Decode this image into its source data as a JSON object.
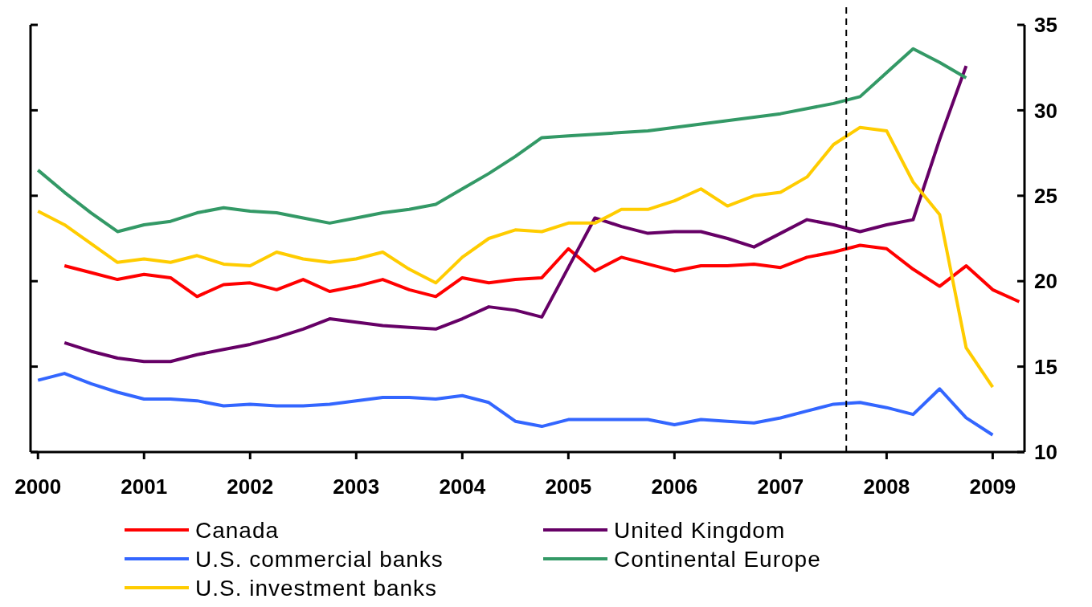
{
  "chart_data": {
    "type": "line",
    "x": [
      2000,
      2000.25,
      2000.5,
      2000.75,
      2001,
      2001.25,
      2001.5,
      2001.75,
      2002,
      2002.25,
      2002.5,
      2002.75,
      2003,
      2003.25,
      2003.5,
      2003.75,
      2004,
      2004.25,
      2004.5,
      2004.75,
      2005,
      2005.25,
      2005.5,
      2005.75,
      2006,
      2006.25,
      2006.5,
      2006.75,
      2007,
      2007.25,
      2007.5,
      2007.75,
      2008,
      2008.25,
      2008.5,
      2008.75,
      2009,
      2009.25
    ],
    "series": [
      {
        "name": "Canada",
        "color": "#ff0000",
        "values": [
          null,
          20.9,
          20.5,
          20.1,
          20.4,
          20.2,
          19.1,
          19.8,
          19.9,
          19.5,
          20.1,
          19.4,
          19.7,
          20.1,
          19.5,
          19.1,
          20.2,
          19.9,
          20.1,
          20.2,
          21.9,
          20.6,
          21.4,
          21.0,
          20.6,
          20.9,
          20.9,
          21.0,
          20.8,
          21.4,
          21.7,
          22.1,
          21.9,
          20.7,
          19.7,
          20.9,
          19.5,
          18.8
        ]
      },
      {
        "name": "United Kingdom",
        "color": "#660066",
        "values": [
          null,
          16.4,
          15.9,
          15.5,
          15.3,
          15.3,
          15.7,
          16.0,
          16.3,
          16.7,
          17.2,
          17.8,
          17.6,
          17.4,
          17.3,
          17.2,
          17.8,
          18.5,
          18.3,
          17.9,
          20.8,
          23.7,
          23.2,
          22.8,
          22.9,
          22.9,
          22.5,
          22.0,
          22.8,
          23.6,
          23.3,
          22.9,
          23.3,
          23.6,
          28.3,
          32.6,
          null,
          null
        ]
      },
      {
        "name": "U.S. commercial banks",
        "color": "#3366ff",
        "values": [
          14.2,
          14.6,
          14.0,
          13.5,
          13.1,
          13.1,
          13.0,
          12.7,
          12.8,
          12.7,
          12.7,
          12.8,
          13.0,
          13.2,
          13.2,
          13.1,
          13.3,
          12.9,
          11.8,
          11.5,
          11.9,
          11.9,
          11.9,
          11.9,
          11.6,
          11.9,
          11.8,
          11.7,
          12.0,
          12.4,
          12.8,
          12.9,
          12.6,
          12.2,
          13.7,
          12.0,
          11.0,
          null
        ]
      },
      {
        "name": "Continental Europe",
        "color": "#339966",
        "values": [
          26.5,
          25.2,
          24.0,
          22.9,
          23.3,
          23.5,
          24.0,
          24.3,
          24.1,
          24.0,
          23.7,
          23.4,
          23.7,
          24.0,
          24.2,
          24.5,
          25.4,
          26.3,
          27.3,
          28.4,
          28.5,
          28.6,
          28.7,
          28.8,
          29.0,
          29.2,
          29.4,
          29.6,
          29.8,
          30.1,
          30.4,
          30.8,
          32.2,
          33.6,
          32.8,
          31.9,
          null,
          null
        ]
      },
      {
        "name": "U.S. investment banks",
        "color": "#ffcc00",
        "values": [
          24.1,
          23.3,
          22.2,
          21.1,
          21.3,
          21.1,
          21.5,
          21.0,
          20.9,
          21.7,
          21.3,
          21.1,
          21.3,
          21.7,
          20.7,
          19.9,
          21.4,
          22.5,
          23.0,
          22.9,
          23.4,
          23.4,
          24.2,
          24.2,
          24.7,
          25.4,
          24.4,
          25.0,
          25.2,
          26.1,
          28.0,
          29.0,
          28.8,
          25.8,
          23.9,
          16.1,
          13.8,
          null
        ]
      }
    ],
    "xlim": [
      1999.93,
      2009.3
    ],
    "xticks": [
      2000,
      2001,
      2002,
      2003,
      2004,
      2005,
      2006,
      2007,
      2008,
      2009
    ],
    "ylim": [
      10,
      35
    ],
    "yticks": [
      10,
      15,
      20,
      25,
      30,
      35
    ],
    "ref_lines": [
      {
        "axis": "x",
        "value": 2007.62,
        "color": "#000000",
        "line_style": "dashed"
      }
    ],
    "grid": false,
    "legend": "bottom",
    "line_style": "solid"
  }
}
